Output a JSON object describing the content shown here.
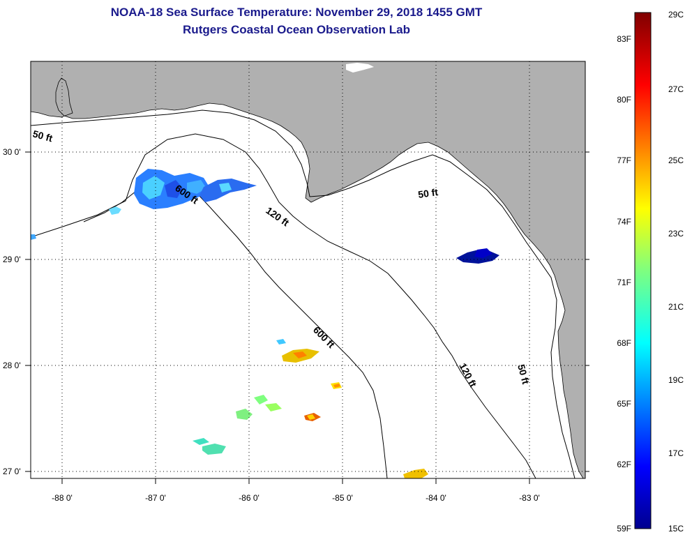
{
  "title": {
    "line1": "NOAA-18 Sea Surface Temperature:  November 29, 2018 1455 GMT",
    "line2": "Rutgers Coastal Ocean Observation Lab"
  },
  "axes": {
    "lon_ticks": [
      "-88 0'",
      "-87 0'",
      "-86 0'",
      "-85 0'",
      "-84 0'",
      "-83 0'"
    ],
    "lat_ticks": [
      "30 0'",
      "29 0'",
      "28 0'",
      "27 0'"
    ]
  },
  "contours": {
    "label_50_west": "50 ft",
    "label_600_north": "600 ft",
    "label_120_north": "120 ft",
    "label_50_east": "50 ft",
    "label_600_south": "600 ft",
    "label_120_south": "120 ft",
    "label_50_south": "50 ft"
  },
  "colorbar": {
    "fahrenheit": [
      "83F",
      "80F",
      "77F",
      "74F",
      "71F",
      "68F",
      "65F",
      "62F",
      "59F"
    ],
    "celsius": [
      "29C",
      "27C",
      "25C",
      "23C",
      "21C",
      "19C",
      "17C",
      "15C"
    ]
  },
  "colors": {
    "land": "#b0b0b0",
    "ocean": "#ffffff",
    "title": "#1a1a8c"
  }
}
